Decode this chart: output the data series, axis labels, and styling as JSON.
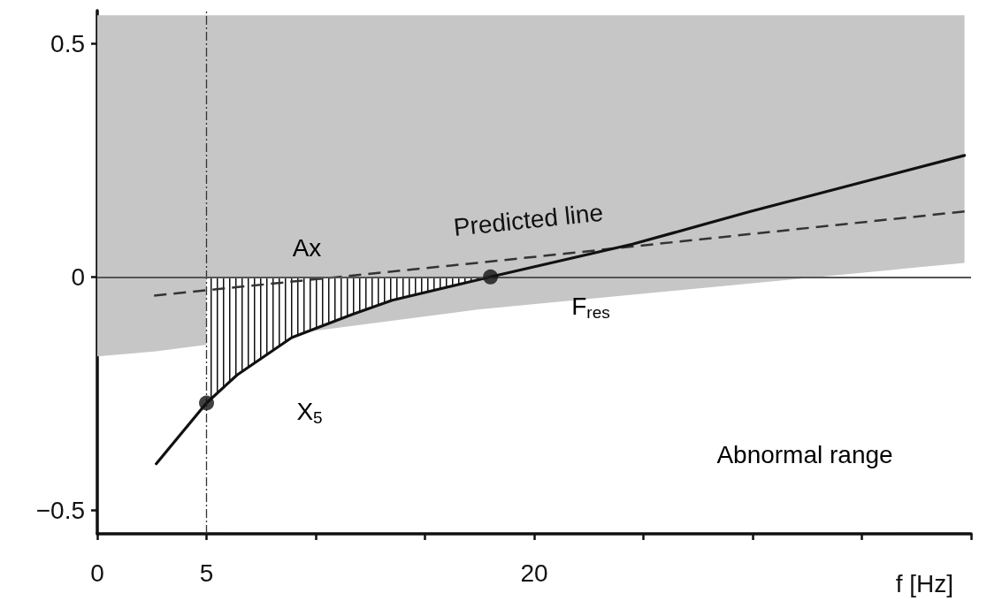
{
  "chart_data": {
    "type": "line",
    "xlabel": "f [Hz]",
    "xlim": [
      0,
      40
    ],
    "ylim": [
      -0.55,
      0.57
    ],
    "xticks": [
      0,
      5,
      {
        "value": 10,
        "label": null
      },
      {
        "value": 15,
        "label": null
      },
      20,
      {
        "value": 25,
        "label": null
      },
      {
        "value": 30,
        "label": null
      },
      {
        "value": 35,
        "label": null
      },
      {
        "value": 40,
        "label": null
      }
    ],
    "yticks": [
      {
        "value": -0.5,
        "label": "−0.5"
      },
      0,
      0.5
    ],
    "grid": false,
    "legend": false,
    "series": [
      {
        "name": "Predicted line",
        "color": "#333333",
        "line_style": "dashed",
        "x": [
          0,
          2.6,
          17.4,
          39.7
        ],
        "values": [
          null,
          -0.04,
          0.03,
          0.14
        ],
        "lower": [
          -0.17,
          -0.16,
          -0.07,
          0.03
        ],
        "upper": [
          0.56,
          0.56,
          0.56,
          0.56
        ]
      },
      {
        "color": "#111111",
        "line_style": "solid",
        "x": [
          2.7,
          5,
          6.4,
          8.9,
          11.7,
          13.5,
          18,
          24.5,
          29.9,
          39.7
        ],
        "values": [
          -0.4,
          -0.27,
          -0.21,
          -0.13,
          -0.08,
          -0.05,
          0,
          0.07,
          0.14,
          0.26
        ],
        "lower": [
          null,
          -0.27,
          -0.21,
          -0.13,
          -0.08,
          -0.05,
          0,
          null,
          null,
          null
        ],
        "upper": [
          null,
          0,
          0,
          0,
          0,
          0,
          0,
          null,
          null,
          null
        ]
      },
      {
        "type": "scatter",
        "color": "#111111",
        "marker": "circle",
        "x": [
          5,
          18
        ],
        "values": [
          -0.27,
          0
        ]
      }
    ],
    "ref_lines": [
      {
        "axis": "x",
        "value": 5,
        "color": "#333333",
        "line_style": "dashed"
      },
      {
        "axis": "y",
        "value": 0,
        "color": "#555555",
        "line_style": "solid"
      }
    ],
    "annotations": [
      "Ax",
      "X$_{5}$",
      "F$_{res}$",
      "Abnormal range"
    ]
  }
}
